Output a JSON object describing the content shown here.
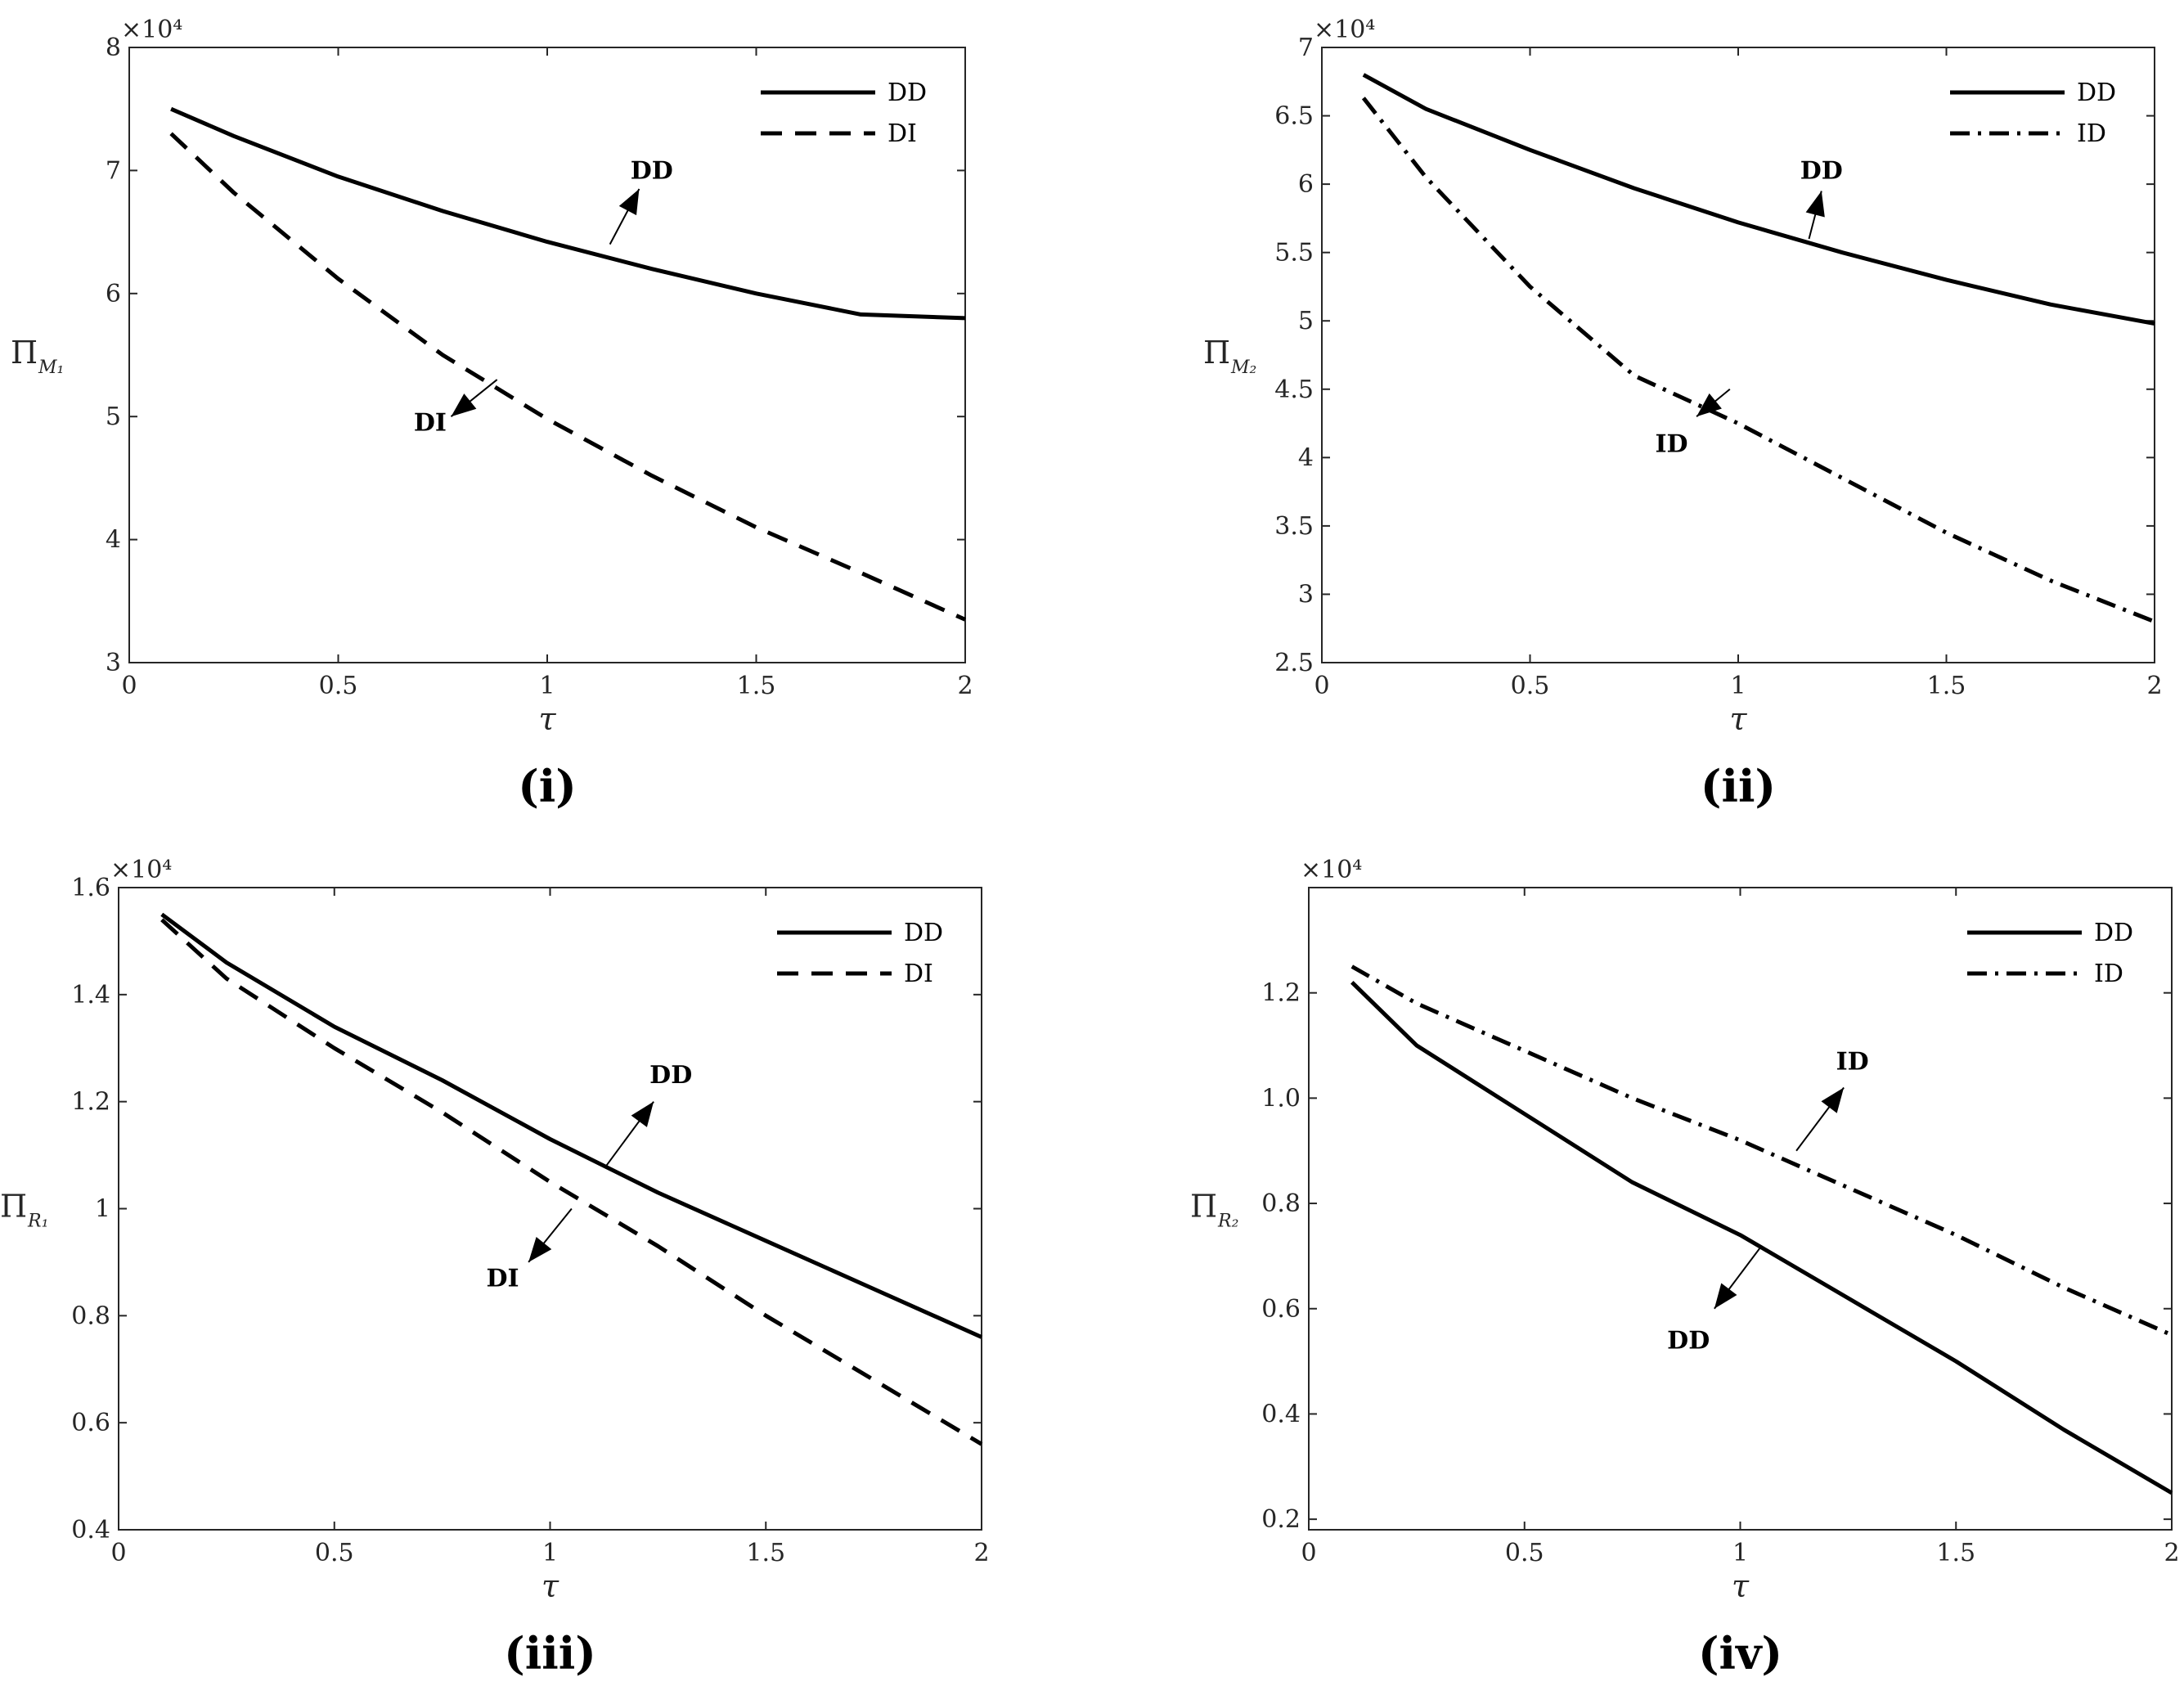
{
  "chart_data": [
    {
      "type": "line",
      "panel_label": "(i)",
      "xlabel": "τ",
      "ylabel": {
        "main": "Π",
        "sub": "M₁"
      },
      "exponent_label": "×10⁴",
      "xlim": [
        0,
        2
      ],
      "ylim": [
        3,
        8
      ],
      "xticks": [
        0,
        0.5,
        1,
        1.5,
        2
      ],
      "xtick_labels": [
        "0",
        "0.5",
        "1",
        "1.5",
        "2"
      ],
      "yticks": [
        3,
        4,
        5,
        6,
        7,
        8
      ],
      "ytick_labels": [
        "3",
        "4",
        "5",
        "6",
        "7",
        "8"
      ],
      "legend_position": "top-right",
      "series": [
        {
          "name": "DD",
          "style": "solid",
          "x": [
            0.1,
            0.25,
            0.5,
            0.75,
            1.0,
            1.25,
            1.5,
            1.75,
            2.0
          ],
          "values": [
            7.5,
            7.28,
            6.95,
            6.67,
            6.42,
            6.2,
            6.0,
            5.83,
            5.8
          ]
        },
        {
          "name": "DI",
          "style": "dashed",
          "x": [
            0.1,
            0.25,
            0.5,
            0.75,
            1.0,
            1.25,
            1.5,
            1.75,
            2.0
          ],
          "values": [
            7.3,
            6.82,
            6.12,
            5.5,
            4.98,
            4.52,
            4.1,
            3.73,
            3.35
          ]
        }
      ],
      "annotations": [
        {
          "text": "DD",
          "from": [
            1.15,
            6.4
          ],
          "to": [
            1.22,
            6.85
          ],
          "label_at": [
            1.25,
            7.0
          ]
        },
        {
          "text": "DI",
          "from": [
            0.88,
            5.3
          ],
          "to": [
            0.77,
            5.0
          ],
          "label_at": [
            0.72,
            4.95
          ]
        }
      ]
    },
    {
      "type": "line",
      "panel_label": "(ii)",
      "xlabel": "τ",
      "ylabel": {
        "main": "Π",
        "sub": "M₂"
      },
      "exponent_label": "×10⁴",
      "xlim": [
        0,
        2
      ],
      "ylim": [
        2.5,
        7
      ],
      "xticks": [
        0,
        0.5,
        1,
        1.5,
        2
      ],
      "xtick_labels": [
        "0",
        "0.5",
        "1",
        "1.5",
        "2"
      ],
      "yticks": [
        2.5,
        3,
        3.5,
        4,
        4.5,
        5,
        5.5,
        6,
        6.5,
        7
      ],
      "ytick_labels": [
        "2.5",
        "3",
        "3.5",
        "4",
        "4.5",
        "5",
        "5.5",
        "6",
        "6.5",
        "7"
      ],
      "legend_position": "top-right",
      "series": [
        {
          "name": "DD",
          "style": "solid",
          "x": [
            0.1,
            0.25,
            0.5,
            0.75,
            1.0,
            1.25,
            1.5,
            1.75,
            2.0
          ],
          "values": [
            6.8,
            6.55,
            6.25,
            5.97,
            5.72,
            5.5,
            5.3,
            5.12,
            4.98
          ]
        },
        {
          "name": "ID",
          "style": "dashdot",
          "x": [
            0.1,
            0.25,
            0.5,
            0.75,
            1.0,
            1.25,
            1.5,
            1.75,
            2.0
          ],
          "values": [
            6.63,
            6.05,
            5.25,
            4.6,
            4.25,
            3.85,
            3.45,
            3.1,
            2.8
          ]
        }
      ],
      "annotations": [
        {
          "text": "DD",
          "from": [
            1.17,
            5.6
          ],
          "to": [
            1.2,
            5.95
          ],
          "label_at": [
            1.2,
            6.1
          ]
        },
        {
          "text": "ID",
          "from": [
            0.98,
            4.5
          ],
          "to": [
            0.9,
            4.3
          ],
          "label_at": [
            0.84,
            4.1
          ]
        }
      ]
    },
    {
      "type": "line",
      "panel_label": "(iii)",
      "xlabel": "τ",
      "ylabel": {
        "main": "Π",
        "sub": "R₁"
      },
      "exponent_label": "×10⁴",
      "xlim": [
        0,
        2
      ],
      "ylim": [
        0.4,
        1.6
      ],
      "xticks": [
        0,
        0.5,
        1,
        1.5,
        2
      ],
      "xtick_labels": [
        "0",
        "0.5",
        "1",
        "1.5",
        "2"
      ],
      "yticks": [
        0.4,
        0.6,
        0.8,
        1.0,
        1.2,
        1.4,
        1.6
      ],
      "ytick_labels": [
        "0.4",
        "0.6",
        "0.8",
        "1",
        "1.2",
        "1.4",
        "1.6"
      ],
      "legend_position": "top-right",
      "series": [
        {
          "name": "DD",
          "style": "solid",
          "x": [
            0.1,
            0.25,
            0.5,
            0.75,
            1.0,
            1.25,
            1.5,
            1.75,
            2.0
          ],
          "values": [
            1.55,
            1.46,
            1.34,
            1.24,
            1.13,
            1.03,
            0.94,
            0.85,
            0.76
          ]
        },
        {
          "name": "DI",
          "style": "dashed",
          "x": [
            0.1,
            0.25,
            0.5,
            0.75,
            1.0,
            1.25,
            1.5,
            1.75,
            2.0
          ],
          "values": [
            1.54,
            1.43,
            1.3,
            1.18,
            1.05,
            0.93,
            0.8,
            0.68,
            0.56
          ]
        }
      ],
      "annotations": [
        {
          "text": "DD",
          "from": [
            1.13,
            1.08
          ],
          "to": [
            1.24,
            1.2
          ],
          "label_at": [
            1.28,
            1.25
          ]
        },
        {
          "text": "DI",
          "from": [
            1.05,
            1.0
          ],
          "to": [
            0.95,
            0.9
          ],
          "label_at": [
            0.89,
            0.87
          ]
        }
      ]
    },
    {
      "type": "line",
      "panel_label": "(iv)",
      "xlabel": "τ",
      "ylabel": {
        "main": "Π",
        "sub": "R₂"
      },
      "exponent_label": "×10⁴",
      "xlim": [
        0,
        2
      ],
      "ylim": [
        0.18,
        1.4
      ],
      "xticks": [
        0,
        0.5,
        1,
        1.5,
        2
      ],
      "xtick_labels": [
        "0",
        "0.5",
        "1",
        "1.5",
        "2"
      ],
      "yticks": [
        0.2,
        0.4,
        0.6,
        0.8,
        1.0,
        1.2
      ],
      "ytick_labels": [
        "0.2",
        "0.4",
        "0.6",
        "0.8",
        "1.0",
        "1.2"
      ],
      "legend_position": "top-right",
      "series": [
        {
          "name": "DD",
          "style": "solid",
          "x": [
            0.1,
            0.25,
            0.5,
            0.75,
            1.0,
            1.25,
            1.5,
            1.75,
            2.0
          ],
          "values": [
            1.22,
            1.1,
            0.97,
            0.84,
            0.74,
            0.62,
            0.5,
            0.37,
            0.25
          ]
        },
        {
          "name": "ID",
          "style": "dashdot",
          "x": [
            0.1,
            0.25,
            0.5,
            0.75,
            1.0,
            1.25,
            1.5,
            1.75,
            2.0
          ],
          "values": [
            1.25,
            1.18,
            1.09,
            1.0,
            0.92,
            0.83,
            0.74,
            0.64,
            0.55
          ]
        }
      ],
      "annotations": [
        {
          "text": "ID",
          "from": [
            1.13,
            0.9
          ],
          "to": [
            1.24,
            1.02
          ],
          "label_at": [
            1.26,
            1.07
          ]
        },
        {
          "text": "DD",
          "from": [
            1.05,
            0.72
          ],
          "to": [
            0.94,
            0.6
          ],
          "label_at": [
            0.88,
            0.54
          ]
        }
      ]
    }
  ]
}
